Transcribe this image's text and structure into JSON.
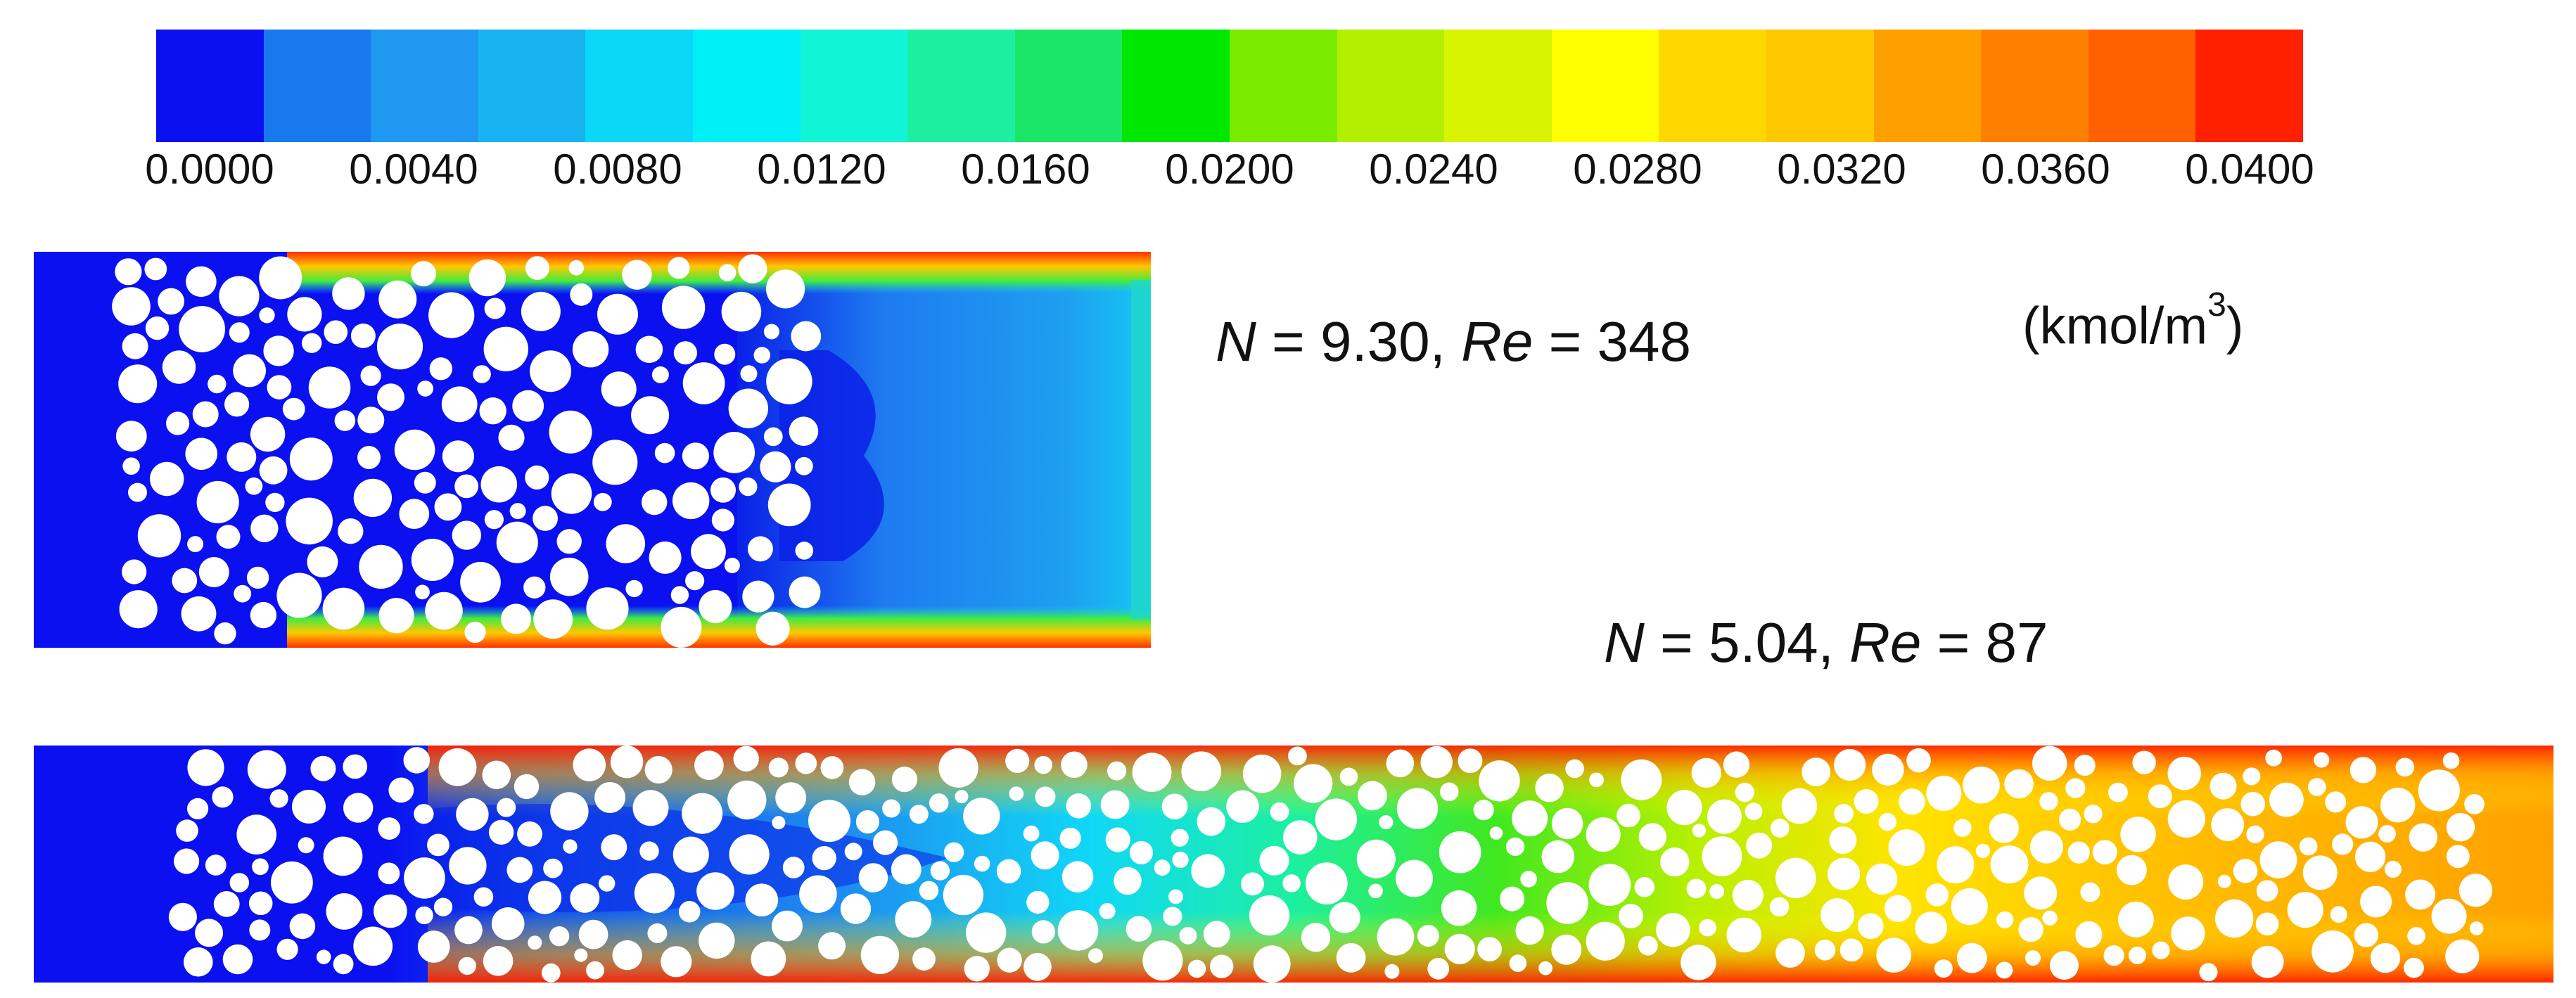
{
  "colorbar": {
    "colors": [
      "#0a10f0",
      "#1a78ee",
      "#1e98f0",
      "#18b4f2",
      "#0ad8f6",
      "#00f0f8",
      "#12f4d6",
      "#1cf0a0",
      "#1ce668",
      "#00e800",
      "#7aec00",
      "#b2f000",
      "#d8f400",
      "#ffff00",
      "#ffd800",
      "#ffc800",
      "#ffa000",
      "#ff8000",
      "#ff6000",
      "#ff2000"
    ],
    "ticks": [
      "0.0000",
      "0.0040",
      "0.0080",
      "0.0120",
      "0.0160",
      "0.0200",
      "0.0240",
      "0.0280",
      "0.0320",
      "0.0360",
      "0.0400"
    ],
    "unit_main": "(kmol/m",
    "unit_exp": "3",
    "unit_close": ")"
  },
  "case1": {
    "n_sym": "N",
    "n_val": " = 9.30, ",
    "re_sym": "Re",
    "re_val": " = 348"
  },
  "case2": {
    "n_sym": "N",
    "n_val": " = 5.04, ",
    "re_sym": "Re",
    "re_val": " = 87"
  }
}
